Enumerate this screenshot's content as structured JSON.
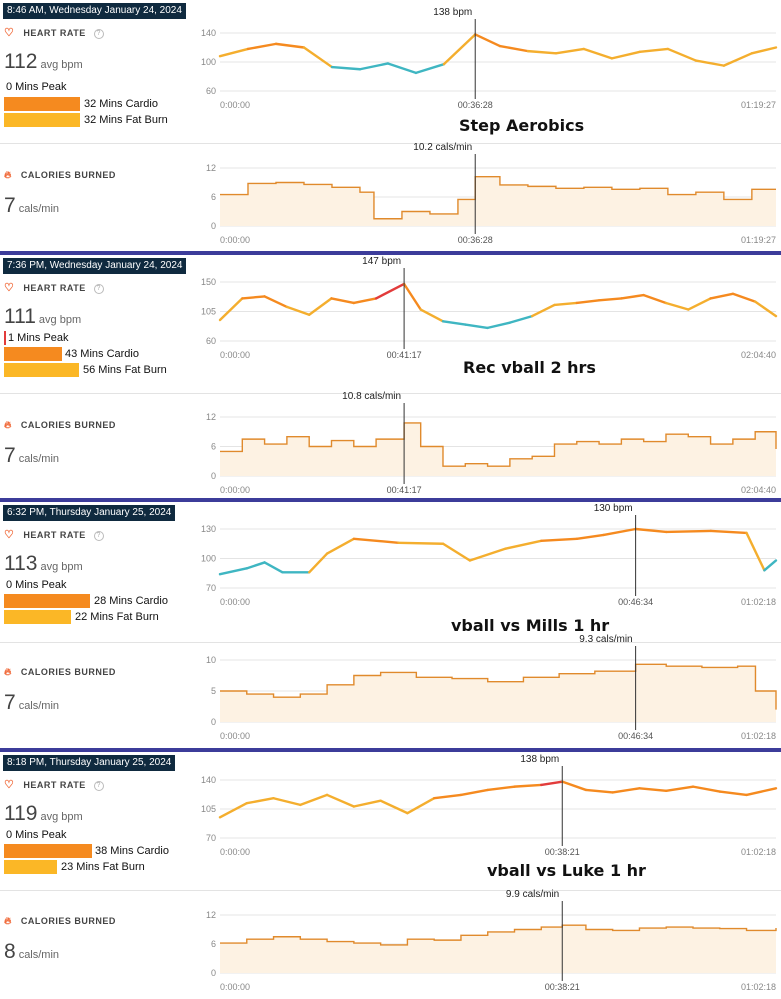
{
  "sessions": [
    {
      "date": "8:46 AM, Wednesday January 24, 2024",
      "heart_rate_title": "HEART RATE",
      "avg_value": "112",
      "avg_unit": "avg bpm",
      "zones": [
        {
          "label": "0 Mins Peak",
          "minutes": 0,
          "color": "#e23b3b"
        },
        {
          "label": "32 Mins Cardio",
          "minutes": 32,
          "color": "#f58a1f"
        },
        {
          "label": "32 Mins Fat Burn",
          "minutes": 32,
          "color": "#fbb726"
        }
      ],
      "activity": "Step Aerobics",
      "calories_title": "CALORIES BURNED",
      "cal_value": "7",
      "cal_unit": "cals/min"
    },
    {
      "date": "7:36 PM, Wednesday January 24, 2024",
      "heart_rate_title": "HEART RATE",
      "avg_value": "111",
      "avg_unit": "avg bpm",
      "zones": [
        {
          "label": "1 Mins Peak",
          "minutes": 1,
          "color": "#e23b3b"
        },
        {
          "label": "43 Mins Cardio",
          "minutes": 43,
          "color": "#f58a1f"
        },
        {
          "label": "56 Mins Fat Burn",
          "minutes": 56,
          "color": "#fbb726"
        }
      ],
      "activity": "Rec vball 2 hrs",
      "calories_title": "CALORIES BURNED",
      "cal_value": "7",
      "cal_unit": "cals/min"
    },
    {
      "date": "6:32 PM, Thursday January 25, 2024",
      "heart_rate_title": "HEART RATE",
      "avg_value": "113",
      "avg_unit": "avg bpm",
      "zones": [
        {
          "label": "0 Mins Peak",
          "minutes": 0,
          "color": "#e23b3b"
        },
        {
          "label": "28 Mins Cardio",
          "minutes": 28,
          "color": "#f58a1f"
        },
        {
          "label": "22 Mins Fat Burn",
          "minutes": 22,
          "color": "#fbb726"
        }
      ],
      "activity": "vball vs Mills 1 hr",
      "calories_title": "CALORIES BURNED",
      "cal_value": "7",
      "cal_unit": "cals/min"
    },
    {
      "date": "8:18 PM, Thursday January 25, 2024",
      "heart_rate_title": "HEART RATE",
      "avg_value": "119",
      "avg_unit": "avg bpm",
      "zones": [
        {
          "label": "0 Mins Peak",
          "minutes": 0,
          "color": "#e23b3b"
        },
        {
          "label": "38 Mins Cardio",
          "minutes": 38,
          "color": "#f58a1f"
        },
        {
          "label": "23 Mins Fat Burn",
          "minutes": 23,
          "color": "#fbb726"
        }
      ],
      "activity": "vball vs Luke 1 hr",
      "calories_title": "CALORIES BURNED",
      "cal_value": "8",
      "cal_unit": "cals/min"
    }
  ],
  "chart_data": [
    {
      "type": "line",
      "metric": "heart_rate",
      "session": 0,
      "x_start": "0:00:00",
      "x_end": "01:19:27",
      "duration_min": 79.45,
      "ylim": [
        60,
        140
      ],
      "yticks": [
        60,
        100,
        140
      ],
      "peak_label": "138 bpm",
      "peak_time": "00:36:28",
      "peak_min": 36.47,
      "peak_value": 138,
      "x_min": [
        0,
        4,
        8,
        12,
        16,
        20,
        24,
        28,
        32,
        36.47,
        40,
        44,
        48,
        52,
        56,
        60,
        64,
        68,
        72,
        76,
        79.45
      ],
      "values": [
        108,
        118,
        125,
        120,
        93,
        90,
        98,
        85,
        97,
        138,
        122,
        115,
        112,
        118,
        105,
        114,
        118,
        102,
        95,
        112,
        120
      ]
    },
    {
      "type": "area",
      "metric": "calories",
      "session": 0,
      "x_start": "0:00:00",
      "x_end": "01:19:27",
      "duration_min": 79.45,
      "ylim": [
        0,
        12
      ],
      "yticks": [
        0,
        6,
        12
      ],
      "peak_label": "10.2 cals/min",
      "peak_time": "00:36:28",
      "peak_min": 36.47,
      "peak_value": 10.2,
      "x_min": [
        0,
        4,
        8,
        12,
        16,
        20,
        22,
        26,
        30,
        34,
        36.47,
        40,
        44,
        48,
        52,
        56,
        60,
        64,
        68,
        72,
        76,
        79.45
      ],
      "values": [
        6.5,
        8.8,
        9,
        8.6,
        8,
        7,
        1.5,
        3,
        2.5,
        5.5,
        10.2,
        8.5,
        8.2,
        7.8,
        8,
        7.6,
        7.8,
        6.5,
        7,
        5.5,
        7.6,
        7.6
      ]
    },
    {
      "type": "line",
      "metric": "heart_rate",
      "session": 1,
      "x_start": "0:00:00",
      "x_end": "02:04:40",
      "duration_min": 124.67,
      "ylim": [
        60,
        150
      ],
      "yticks": [
        60,
        105,
        150
      ],
      "peak_label": "147 bpm",
      "peak_time": "00:41:17",
      "peak_min": 41.28,
      "peak_value": 147,
      "x_min": [
        0,
        5,
        10,
        15,
        20,
        25,
        30,
        35,
        41.28,
        45,
        50,
        55,
        60,
        65,
        70,
        75,
        80,
        85,
        90,
        95,
        100,
        105,
        110,
        115,
        120,
        124.67
      ],
      "values": [
        92,
        125,
        128,
        112,
        100,
        125,
        118,
        125,
        147,
        108,
        90,
        85,
        80,
        88,
        98,
        115,
        118,
        122,
        125,
        130,
        118,
        108,
        125,
        132,
        120,
        98
      ]
    },
    {
      "type": "area",
      "metric": "calories",
      "session": 1,
      "x_start": "0:00:00",
      "x_end": "02:04:40",
      "duration_min": 124.67,
      "ylim": [
        0,
        12
      ],
      "yticks": [
        0,
        6,
        12
      ],
      "peak_label": "10.8 cals/min",
      "peak_time": "00:41:17",
      "peak_min": 41.28,
      "peak_value": 10.8,
      "x_min": [
        0,
        5,
        10,
        15,
        20,
        25,
        30,
        35,
        41.28,
        45,
        50,
        55,
        60,
        65,
        70,
        75,
        80,
        85,
        90,
        95,
        100,
        105,
        110,
        115,
        120,
        124.67
      ],
      "values": [
        5,
        7.5,
        6.5,
        8,
        6,
        7.2,
        6,
        7.5,
        10.8,
        6,
        2,
        2.5,
        2,
        3.5,
        4,
        6.5,
        7,
        6.5,
        7.5,
        7,
        8.5,
        8,
        6.5,
        7.5,
        9,
        5.5
      ]
    },
    {
      "type": "line",
      "metric": "heart_rate",
      "session": 2,
      "x_start": "0:00:00",
      "x_end": "01:02:18",
      "duration_min": 62.3,
      "ylim": [
        70,
        130
      ],
      "yticks": [
        70,
        100,
        130
      ],
      "peak_label": "130 bpm",
      "peak_time": "00:46:34",
      "peak_min": 46.57,
      "peak_value": 130,
      "x_min": [
        0,
        3,
        5,
        7,
        10,
        12,
        15,
        20,
        25,
        28,
        32,
        36,
        40,
        43,
        46.57,
        50,
        55,
        59,
        61,
        62.3
      ],
      "values": [
        84,
        90,
        96,
        86,
        86,
        105,
        120,
        116,
        115,
        98,
        110,
        118,
        120,
        124,
        130,
        127,
        128,
        126,
        88,
        98
      ]
    },
    {
      "type": "area",
      "metric": "calories",
      "session": 2,
      "x_start": "0:00:00",
      "x_end": "01:02:18",
      "duration_min": 62.3,
      "ylim": [
        0,
        10
      ],
      "yticks": [
        0,
        5,
        10
      ],
      "peak_label": "9.3 cals/min",
      "peak_time": "00:46:34",
      "peak_min": 46.57,
      "peak_value": 9.3,
      "x_min": [
        0,
        3,
        6,
        9,
        12,
        15,
        18,
        22,
        26,
        30,
        34,
        38,
        42,
        46.57,
        50,
        54,
        58,
        60,
        62.3
      ],
      "values": [
        5,
        4.5,
        4,
        4.5,
        6,
        7.5,
        8,
        7.2,
        7,
        6.5,
        7.2,
        7.8,
        8.2,
        9.3,
        9,
        8.8,
        9,
        5,
        2
      ]
    },
    {
      "type": "line",
      "metric": "heart_rate",
      "session": 3,
      "x_start": "0:00:00",
      "x_end": "01:02:18",
      "duration_min": 62.3,
      "ylim": [
        70,
        140
      ],
      "yticks": [
        70,
        105,
        140
      ],
      "peak_label": "138 bpm",
      "peak_time": "00:38:21",
      "peak_min": 38.35,
      "peak_value": 138,
      "x_min": [
        0,
        3,
        6,
        9,
        12,
        15,
        18,
        21,
        24,
        27,
        30,
        33,
        36,
        38.35,
        41,
        44,
        47,
        50,
        53,
        56,
        59,
        62.3
      ],
      "values": [
        95,
        112,
        118,
        110,
        122,
        108,
        115,
        100,
        118,
        122,
        128,
        132,
        134,
        138,
        128,
        125,
        130,
        127,
        132,
        126,
        122,
        130
      ]
    },
    {
      "type": "area",
      "metric": "calories",
      "session": 3,
      "x_start": "0:00:00",
      "x_end": "01:02:18",
      "duration_min": 62.3,
      "ylim": [
        0,
        12
      ],
      "yticks": [
        0,
        6,
        12
      ],
      "peak_label": "9.9 cals/min",
      "peak_time": "00:38:21",
      "peak_min": 38.35,
      "peak_value": 9.9,
      "x_min": [
        0,
        3,
        6,
        9,
        12,
        15,
        18,
        21,
        24,
        27,
        30,
        33,
        36,
        38.35,
        41,
        44,
        47,
        50,
        53,
        56,
        59,
        62.3
      ],
      "values": [
        6.2,
        7,
        7.5,
        7,
        6.5,
        6.2,
        5.8,
        7,
        6.8,
        7.8,
        8.5,
        9,
        9.5,
        9.9,
        9,
        8.8,
        9.3,
        9.5,
        9.3,
        9.2,
        8.8,
        9.3
      ]
    }
  ],
  "colors": {
    "peak": "#e23b3b",
    "cardio": "#f58a1f",
    "fatburn": "#f4ae2e",
    "below": "#3fb6c2",
    "cal_line": "#e08a2c",
    "cal_fill": "#fdf2e3",
    "separator": "#3c3c9a"
  }
}
